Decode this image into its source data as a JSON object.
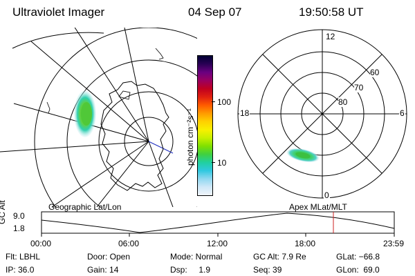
{
  "header": {
    "instrument": "Ultraviolet Imager",
    "date": "04 Sep 07",
    "time": "19:50:58 UT"
  },
  "colorbar": {
    "label": "photon cm⁻²s⁻¹",
    "ticks": [
      "100",
      "10"
    ],
    "colors": [
      "#000033",
      "#2a0055",
      "#6a0080",
      "#9a0060",
      "#c00020",
      "#e02010",
      "#ff5a00",
      "#ff9a00",
      "#ffd000",
      "#f8f000",
      "#c8f000",
      "#80e000",
      "#40d040",
      "#20d0a0",
      "#30c8e0",
      "#90d8f0",
      "#d0e8f8",
      "#f0f4fa"
    ]
  },
  "polar_plot": {
    "mlt_labels": {
      "top": "12",
      "left": "18",
      "right": "6",
      "bottom": "0"
    },
    "lat_labels": [
      "60",
      "70",
      "80"
    ]
  },
  "timeline": {
    "left_label": "Geographic Lat/Lon",
    "right_label": "Apex MLat/MLT",
    "y_title": "GC Alt",
    "y_ticks": [
      "9.0",
      "1.8"
    ],
    "x_ticks": [
      "00:00",
      "06:00",
      "12:00",
      "18:00",
      "23:59"
    ],
    "marker_color": "#cc2222"
  },
  "info": {
    "filter": "Flt: LBHL",
    "ip": "IP: 36.0",
    "door": "Door: Open",
    "gain": "Gain: 14",
    "mode": "Mode: Normal",
    "dsp": "Dsp:     1.9",
    "gc_alt": "GC Alt: 7.9 Re",
    "seq": "Seq: 39",
    "glat": "GLat: −66.8",
    "glon": "GLon:  69.0"
  }
}
